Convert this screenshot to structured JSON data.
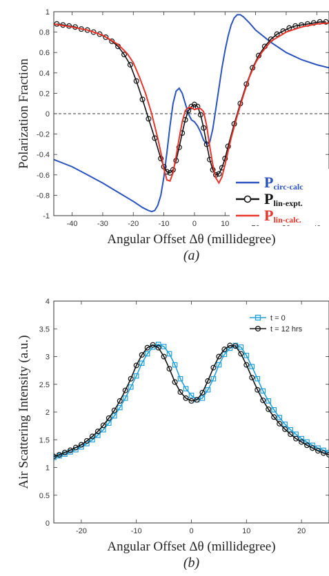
{
  "chart_data": [
    {
      "type": "line",
      "panel_label": "(a)",
      "xlabel": "Angular Offset Δθ (millidegree)",
      "ylabel": "Polarization Fraction",
      "xlim": [
        -46,
        44
      ],
      "ylim": [
        -1,
        1
      ],
      "xticks": [
        -40,
        -30,
        -20,
        -10,
        0,
        10,
        20,
        30,
        40
      ],
      "yticks": [
        -1,
        -0.8,
        -0.6,
        -0.4,
        -0.2,
        0,
        0.2,
        0.4,
        0.6,
        0.8,
        1
      ],
      "reference_line": {
        "y": 0,
        "style": "dashed"
      },
      "legend_position": "right",
      "series": [
        {
          "legend_main": "P",
          "legend_sub": "circ-calc",
          "color": "#2a52be",
          "marker": "none",
          "x": [
            -46,
            -40,
            -35,
            -30,
            -25,
            -20,
            -17,
            -15,
            -14,
            -13,
            -12,
            -11,
            -10,
            -9,
            -8,
            -7,
            -6,
            -5,
            -4,
            -3,
            -2,
            -1,
            0,
            1,
            2,
            3,
            4,
            5,
            6,
            7,
            8,
            9,
            10,
            11,
            12,
            13,
            14,
            15,
            16,
            18,
            20,
            25,
            30,
            35,
            40,
            44
          ],
          "y": [
            -0.45,
            -0.52,
            -0.6,
            -0.68,
            -0.77,
            -0.86,
            -0.92,
            -0.95,
            -0.96,
            -0.95,
            -0.9,
            -0.8,
            -0.62,
            -0.38,
            -0.12,
            0.1,
            0.22,
            0.25,
            0.2,
            0.1,
            0,
            -0.06,
            -0.08,
            -0.12,
            -0.18,
            -0.26,
            -0.3,
            -0.28,
            -0.15,
            0.05,
            0.25,
            0.45,
            0.62,
            0.76,
            0.87,
            0.94,
            0.97,
            0.97,
            0.95,
            0.89,
            0.82,
            0.7,
            0.6,
            0.53,
            0.48,
            0.45
          ]
        },
        {
          "legend_main": "P",
          "legend_sub": "lin-expt.",
          "color": "#111111",
          "marker": "circle",
          "x": [
            -45,
            -43,
            -41,
            -39,
            -37,
            -35,
            -33,
            -31,
            -29,
            -27,
            -25,
            -23,
            -21,
            -19,
            -17,
            -15,
            -13,
            -11,
            -10,
            -9,
            -8,
            -7,
            -6,
            -5,
            -4,
            -3,
            -2,
            -1,
            0,
            1,
            2,
            3,
            4,
            5,
            6,
            7,
            8,
            9,
            10,
            11,
            13,
            15,
            17,
            19,
            21,
            23,
            25,
            27,
            29,
            31,
            33,
            35,
            37,
            39,
            41,
            43
          ],
          "y": [
            0.88,
            0.87,
            0.86,
            0.85,
            0.83,
            0.82,
            0.8,
            0.78,
            0.75,
            0.71,
            0.66,
            0.58,
            0.48,
            0.32,
            0.14,
            -0.05,
            -0.24,
            -0.44,
            -0.52,
            -0.57,
            -0.58,
            -0.55,
            -0.46,
            -0.33,
            -0.19,
            -0.06,
            0.03,
            0.07,
            0.09,
            0.07,
            -0.01,
            -0.14,
            -0.3,
            -0.45,
            -0.55,
            -0.6,
            -0.59,
            -0.53,
            -0.44,
            -0.32,
            -0.1,
            0.1,
            0.29,
            0.45,
            0.57,
            0.66,
            0.73,
            0.78,
            0.81,
            0.84,
            0.86,
            0.87,
            0.88,
            0.89,
            0.9,
            0.9
          ]
        },
        {
          "legend_main": "P",
          "legend_sub": "lin-calc.",
          "color": "#e8342a",
          "marker": "none",
          "x": [
            -46,
            -40,
            -35,
            -30,
            -25,
            -22,
            -20,
            -18,
            -16,
            -14,
            -12,
            -11,
            -10,
            -9,
            -8,
            -7,
            -6,
            -5,
            -4,
            -3,
            -2,
            -1,
            0,
            1,
            2,
            3,
            4,
            5,
            6,
            7,
            8,
            9,
            10,
            11,
            12,
            14,
            16,
            18,
            20,
            22,
            25,
            30,
            35,
            40,
            44
          ],
          "y": [
            0.88,
            0.85,
            0.82,
            0.77,
            0.68,
            0.59,
            0.5,
            0.36,
            0.2,
            0.0,
            -0.24,
            -0.38,
            -0.54,
            -0.65,
            -0.66,
            -0.58,
            -0.42,
            -0.24,
            -0.08,
            0.03,
            0.06,
            0.06,
            0.04,
            0.05,
            0.05,
            0.02,
            -0.12,
            -0.32,
            -0.5,
            -0.63,
            -0.68,
            -0.62,
            -0.5,
            -0.37,
            -0.24,
            -0.02,
            0.18,
            0.36,
            0.5,
            0.6,
            0.71,
            0.8,
            0.85,
            0.88,
            0.89
          ]
        }
      ]
    },
    {
      "type": "line",
      "panel_label": "(b)",
      "xlabel": "Angular Offset Δθ (millidegree)",
      "ylabel": "Air Scattering Intensity (a.u.)",
      "xlim": [
        -25,
        25
      ],
      "ylim": [
        0,
        4
      ],
      "xticks": [
        -20,
        -10,
        0,
        10,
        20
      ],
      "yticks": [
        0,
        0.5,
        1,
        1.5,
        2,
        2.5,
        3,
        3.5,
        4
      ],
      "legend_position": "top-right",
      "series": [
        {
          "name": "t = 0",
          "color": "#1f9fd8",
          "marker": "square",
          "x": [
            -25,
            -24,
            -23,
            -22,
            -21,
            -20,
            -19,
            -18,
            -17,
            -16,
            -15,
            -14,
            -13,
            -12,
            -11,
            -10,
            -9,
            -8,
            -7,
            -6,
            -5,
            -4,
            -3,
            -2,
            -1,
            0,
            1,
            2,
            3,
            4,
            5,
            6,
            7,
            8,
            9,
            10,
            11,
            12,
            13,
            14,
            15,
            16,
            17,
            18,
            19,
            20,
            21,
            22,
            23,
            24,
            25
          ],
          "y": [
            1.18,
            1.21,
            1.24,
            1.28,
            1.32,
            1.37,
            1.43,
            1.5,
            1.58,
            1.68,
            1.8,
            1.93,
            2.08,
            2.25,
            2.45,
            2.65,
            2.88,
            3.05,
            3.17,
            3.22,
            3.18,
            3.05,
            2.85,
            2.6,
            2.42,
            2.3,
            2.22,
            2.25,
            2.4,
            2.6,
            2.85,
            3.04,
            3.15,
            3.2,
            3.17,
            3.02,
            2.82,
            2.6,
            2.38,
            2.2,
            2.04,
            1.9,
            1.78,
            1.68,
            1.6,
            1.52,
            1.46,
            1.4,
            1.35,
            1.31,
            1.27
          ]
        },
        {
          "name": "t = 12 hrs",
          "color": "#111111",
          "marker": "circle",
          "x": [
            -25,
            -24,
            -23,
            -22,
            -21,
            -20,
            -19,
            -18,
            -17,
            -16,
            -15,
            -14,
            -13,
            -12,
            -11,
            -10,
            -9,
            -8,
            -7,
            -6,
            -5,
            -4,
            -3,
            -2,
            -1,
            0,
            1,
            2,
            3,
            4,
            5,
            6,
            7,
            8,
            9,
            10,
            11,
            12,
            13,
            14,
            15,
            16,
            17,
            18,
            19,
            20,
            21,
            22,
            23,
            24,
            25
          ],
          "y": [
            1.2,
            1.23,
            1.27,
            1.31,
            1.36,
            1.41,
            1.48,
            1.56,
            1.65,
            1.76,
            1.89,
            2.03,
            2.2,
            2.39,
            2.6,
            2.84,
            3.03,
            3.16,
            3.21,
            3.16,
            3.0,
            2.78,
            2.54,
            2.36,
            2.25,
            2.2,
            2.22,
            2.35,
            2.56,
            2.8,
            3.0,
            3.13,
            3.2,
            3.19,
            3.05,
            2.85,
            2.62,
            2.4,
            2.21,
            2.05,
            1.91,
            1.79,
            1.69,
            1.6,
            1.52,
            1.46,
            1.4,
            1.35,
            1.3,
            1.26,
            1.23
          ]
        }
      ]
    }
  ]
}
